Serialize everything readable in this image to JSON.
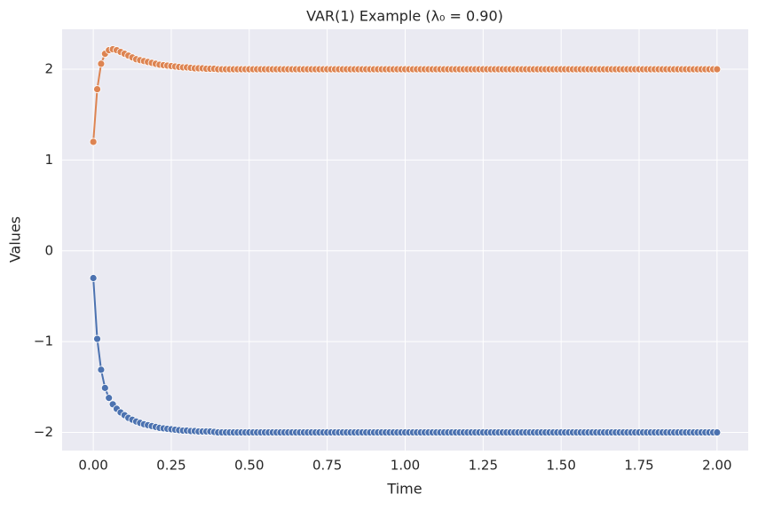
{
  "chart_data": {
    "type": "line",
    "title": "VAR(1) Example (λ₀ = 0.90)",
    "xlabel": "Time",
    "ylabel": "Values",
    "x": [
      0,
      0.0125,
      0.025,
      0.0375,
      0.05,
      0.0625,
      0.075,
      0.0875,
      0.1,
      0.1125,
      0.125,
      0.1375,
      0.15,
      0.1625,
      0.175,
      0.1875,
      0.2,
      0.2125,
      0.225,
      0.2375,
      0.25,
      0.2625,
      0.275,
      0.2875,
      0.3,
      0.3125,
      0.325,
      0.3375,
      0.35,
      0.3625,
      0.375,
      0.3875,
      0.4,
      0.4125,
      0.425,
      0.4375,
      0.45,
      0.4625,
      0.475,
      0.4875,
      0.5,
      0.5125,
      0.525,
      0.5375,
      0.55,
      0.5625,
      0.575,
      0.5875,
      0.6,
      0.6125,
      0.625,
      0.6375,
      0.65,
      0.6625,
      0.675,
      0.6875,
      0.7,
      0.7125,
      0.725,
      0.7375,
      0.75,
      0.7625,
      0.775,
      0.7875,
      0.8,
      0.8125,
      0.825,
      0.8375,
      0.85,
      0.8625,
      0.875,
      0.8875,
      0.9,
      0.9125,
      0.925,
      0.9375,
      0.95,
      0.9625,
      0.975,
      0.9875,
      1,
      1.0125,
      1.025,
      1.0375,
      1.05,
      1.0625,
      1.075,
      1.0875,
      1.1,
      1.1125,
      1.125,
      1.1375,
      1.15,
      1.1625,
      1.175,
      1.1875,
      1.2,
      1.2125,
      1.225,
      1.2375,
      1.25,
      1.2625,
      1.275,
      1.2875,
      1.3,
      1.3125,
      1.325,
      1.3375,
      1.35,
      1.3625,
      1.375,
      1.3875,
      1.4,
      1.4125,
      1.425,
      1.4375,
      1.45,
      1.4625,
      1.475,
      1.4875,
      1.5,
      1.5125,
      1.525,
      1.5375,
      1.55,
      1.5625,
      1.575,
      1.5875,
      1.6,
      1.6125,
      1.625,
      1.6375,
      1.65,
      1.6625,
      1.675,
      1.6875,
      1.7,
      1.7125,
      1.725,
      1.7375,
      1.75,
      1.7625,
      1.775,
      1.7875,
      1.8,
      1.8125,
      1.825,
      1.8375,
      1.85,
      1.8625,
      1.875,
      1.8875,
      1.9,
      1.9125,
      1.925,
      1.9375,
      1.95,
      1.9625,
      1.975,
      1.9875,
      2
    ],
    "series": [
      {
        "color": "#4c72b0",
        "values": [
          -0.3,
          -0.97,
          -1.31,
          -1.51,
          -1.62,
          -1.69,
          -1.74,
          -1.78,
          -1.81,
          -1.84,
          -1.86,
          -1.88,
          -1.895,
          -1.91,
          -1.92,
          -1.93,
          -1.94,
          -1.95,
          -1.955,
          -1.96,
          -1.965,
          -1.97,
          -1.975,
          -1.98,
          -1.98,
          -1.985,
          -1.985,
          -1.99,
          -1.99,
          -1.99,
          -1.99,
          -1.995,
          -2,
          -2,
          -2,
          -2,
          -2,
          -2,
          -2,
          -2,
          -2,
          -2,
          -2,
          -2,
          -2,
          -2,
          -2,
          -2,
          -2,
          -2,
          -2,
          -2,
          -2,
          -2,
          -2,
          -2,
          -2,
          -2,
          -2,
          -2,
          -2,
          -2,
          -2,
          -2,
          -2,
          -2,
          -2,
          -2,
          -2,
          -2,
          -2,
          -2,
          -2,
          -2,
          -2,
          -2,
          -2,
          -2,
          -2,
          -2,
          -2,
          -2,
          -2,
          -2,
          -2,
          -2,
          -2,
          -2,
          -2,
          -2,
          -2,
          -2,
          -2,
          -2,
          -2,
          -2,
          -2,
          -2,
          -2,
          -2,
          -2,
          -2,
          -2,
          -2,
          -2,
          -2,
          -2,
          -2,
          -2,
          -2,
          -2,
          -2,
          -2,
          -2,
          -2,
          -2,
          -2,
          -2,
          -2,
          -2,
          -2,
          -2,
          -2,
          -2,
          -2,
          -2,
          -2,
          -2,
          -2,
          -2,
          -2,
          -2,
          -2,
          -2,
          -2,
          -2,
          -2,
          -2,
          -2,
          -2,
          -2,
          -2,
          -2,
          -2,
          -2,
          -2,
          -2,
          -2,
          -2,
          -2,
          -2,
          -2,
          -2,
          -2,
          -2,
          -2,
          -2,
          -2,
          -2,
          -2,
          -2
        ]
      },
      {
        "color": "#dd8452",
        "values": [
          1.2,
          1.78,
          2.06,
          2.17,
          2.21,
          2.22,
          2.21,
          2.19,
          2.17,
          2.15,
          2.13,
          2.11,
          2.1,
          2.09,
          2.08,
          2.07,
          2.06,
          2.05,
          2.045,
          2.04,
          2.035,
          2.03,
          2.025,
          2.02,
          2.02,
          2.015,
          2.01,
          2.01,
          2.01,
          2.005,
          2.005,
          2.005,
          2,
          2,
          2,
          2,
          2,
          2,
          2,
          2,
          2,
          2,
          2,
          2,
          2,
          2,
          2,
          2,
          2,
          2,
          2,
          2,
          2,
          2,
          2,
          2,
          2,
          2,
          2,
          2,
          2,
          2,
          2,
          2,
          2,
          2,
          2,
          2,
          2,
          2,
          2,
          2,
          2,
          2,
          2,
          2,
          2,
          2,
          2,
          2,
          2,
          2,
          2,
          2,
          2,
          2,
          2,
          2,
          2,
          2,
          2,
          2,
          2,
          2,
          2,
          2,
          2,
          2,
          2,
          2,
          2,
          2,
          2,
          2,
          2,
          2,
          2,
          2,
          2,
          2,
          2,
          2,
          2,
          2,
          2,
          2,
          2,
          2,
          2,
          2,
          2,
          2,
          2,
          2,
          2,
          2,
          2,
          2,
          2,
          2,
          2,
          2,
          2,
          2,
          2,
          2,
          2,
          2,
          2,
          2,
          2,
          2,
          2,
          2,
          2,
          2,
          2,
          2,
          2,
          2,
          2,
          2,
          2,
          2,
          2,
          2,
          2,
          2,
          2,
          2,
          2
        ]
      }
    ],
    "xlim": [
      -0.1,
      2.1
    ],
    "ylim": [
      -2.2,
      2.44
    ],
    "xticks": [
      {
        "value": 0,
        "label": "0.00"
      },
      {
        "value": 0.25,
        "label": "0.25"
      },
      {
        "value": 0.5,
        "label": "0.50"
      },
      {
        "value": 0.75,
        "label": "0.75"
      },
      {
        "value": 1,
        "label": "1.00"
      },
      {
        "value": 1.25,
        "label": "1.25"
      },
      {
        "value": 1.5,
        "label": "1.50"
      },
      {
        "value": 1.75,
        "label": "1.75"
      },
      {
        "value": 2,
        "label": "2.00"
      }
    ],
    "yticks": [
      {
        "value": -2,
        "label": "−2"
      },
      {
        "value": -1,
        "label": "−1"
      },
      0,
      1,
      2
    ],
    "grid": true
  }
}
